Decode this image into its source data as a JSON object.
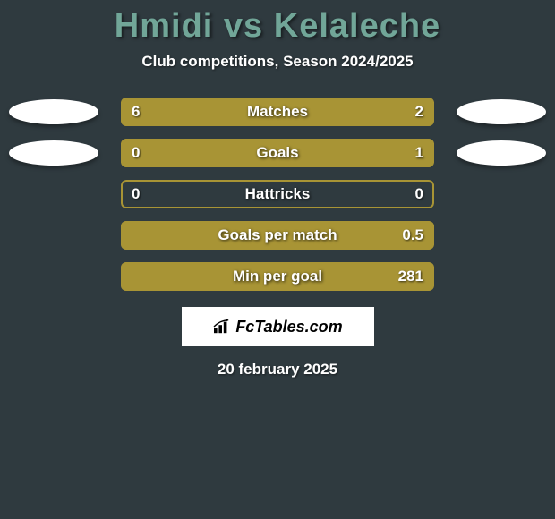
{
  "background_color": "#2f3a3f",
  "title": {
    "player1": "Hmidi",
    "vs": "vs",
    "player2": "Kelaleche",
    "color": "#71a698"
  },
  "subtitle": "Club competitions, Season 2024/2025",
  "disc_color": "#ffffff",
  "disc_shadow": "rgba(0,0,0,0.35)",
  "border_color": "#a89435",
  "left_fill_color": "#a89435",
  "right_fill_color": "#a89435",
  "empty_fill_color": "rgba(0,0,0,0)",
  "stats": [
    {
      "label": "Matches",
      "left_value": "6",
      "right_value": "2",
      "left_pct": 72,
      "right_pct": 28,
      "show_discs": true
    },
    {
      "label": "Goals",
      "left_value": "0",
      "right_value": "1",
      "left_pct": 18,
      "right_pct": 82,
      "show_discs": true
    },
    {
      "label": "Hattricks",
      "left_value": "0",
      "right_value": "0",
      "left_pct": 0,
      "right_pct": 0,
      "show_discs": false
    },
    {
      "label": "Goals per match",
      "left_value": "",
      "right_value": "0.5",
      "left_pct": 0,
      "right_pct": 100,
      "show_discs": false
    },
    {
      "label": "Min per goal",
      "left_value": "",
      "right_value": "281",
      "left_pct": 0,
      "right_pct": 100,
      "show_discs": false
    }
  ],
  "logo_text": "FcTables.com",
  "date": "20 february 2025"
}
